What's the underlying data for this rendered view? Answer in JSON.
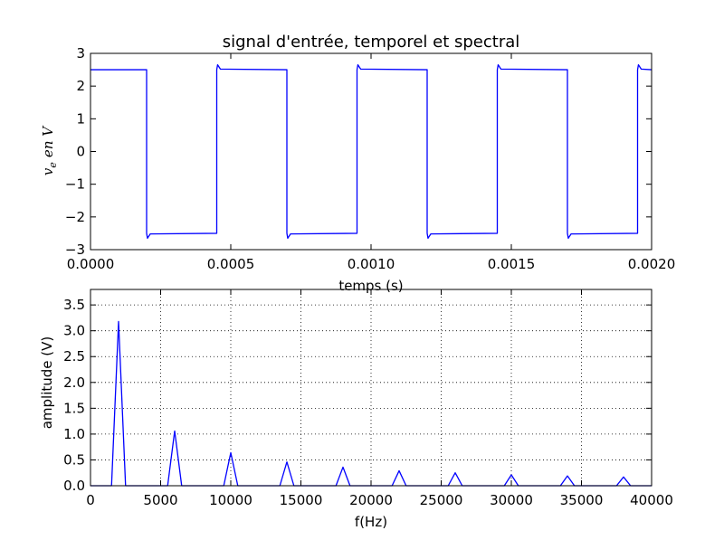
{
  "chart_data": [
    {
      "type": "line",
      "title": "signal d'entrée, temporel et spectral",
      "xlabel": "temps (s)",
      "ylabel": "v_e en V",
      "ylabel_parts": {
        "base": "v",
        "sub": "e",
        "rest": "en V"
      },
      "xlim": [
        0,
        0.002
      ],
      "ylim": [
        -3,
        3
      ],
      "grid": false,
      "x_ticks": [
        0.0,
        0.0005,
        0.001,
        0.0015,
        0.002
      ],
      "x_tick_labels": [
        "0.0000",
        "0.0005",
        "0.0010",
        "0.0015",
        "0.0020"
      ],
      "y_ticks": [
        -3,
        -2,
        -1,
        0,
        1,
        2,
        3
      ],
      "y_tick_labels": [
        "−3",
        "−2",
        "−1",
        "0",
        "1",
        "2",
        "3"
      ],
      "color": "#0000ff",
      "series": [
        {
          "x": [
            0.0,
            0.0002,
            0.0002,
            0.000203,
            0.000213,
            0.00045,
            0.00045,
            0.000453,
            0.000463,
            0.0007,
            0.0007,
            0.000703,
            0.000713,
            0.00095,
            0.00095,
            0.000953,
            0.000963,
            0.0012,
            0.0012,
            0.001203,
            0.001213,
            0.00145,
            0.00145,
            0.001453,
            0.001463,
            0.0017,
            0.0017,
            0.001703,
            0.001713,
            0.00195,
            0.00195,
            0.001953,
            0.001963,
            0.002
          ],
          "values": [
            2.5,
            2.5,
            -2.5,
            -2.65,
            -2.52,
            -2.5,
            2.5,
            2.65,
            2.52,
            2.5,
            -2.5,
            -2.65,
            -2.52,
            -2.5,
            2.5,
            2.65,
            2.52,
            2.5,
            -2.5,
            -2.65,
            -2.52,
            -2.5,
            2.5,
            2.65,
            2.52,
            2.5,
            -2.5,
            -2.65,
            -2.52,
            -2.5,
            2.5,
            2.65,
            2.52,
            2.5
          ]
        }
      ]
    },
    {
      "type": "line",
      "title": "",
      "xlabel": "f(Hz)",
      "ylabel": "amplitude (V)",
      "xlim": [
        0,
        40000
      ],
      "ylim": [
        0,
        3.8
      ],
      "grid": true,
      "x_ticks": [
        0,
        5000,
        10000,
        15000,
        20000,
        25000,
        30000,
        35000,
        40000
      ],
      "x_tick_labels": [
        "0",
        "5000",
        "10000",
        "15000",
        "20000",
        "25000",
        "30000",
        "35000",
        "40000"
      ],
      "y_ticks": [
        0,
        0.5,
        1.0,
        1.5,
        2.0,
        2.5,
        3.0,
        3.5
      ],
      "y_tick_labels": [
        "0.0",
        "0.5",
        "1.0",
        "1.5",
        "2.0",
        "2.5",
        "3.0",
        "3.5"
      ],
      "color": "#0000ff",
      "series": [
        {
          "x": [
            0,
            1500,
            2000,
            2500,
            5500,
            6000,
            6500,
            9500,
            10000,
            10500,
            13500,
            14000,
            14500,
            17500,
            18000,
            18500,
            21500,
            22000,
            22500,
            25500,
            26000,
            26500,
            29500,
            30000,
            30500,
            33500,
            34000,
            34500,
            37500,
            38000,
            38500,
            40000
          ],
          "values": [
            0,
            0,
            3.18,
            0,
            0,
            1.06,
            0,
            0,
            0.64,
            0,
            0,
            0.46,
            0,
            0,
            0.36,
            0,
            0,
            0.29,
            0,
            0,
            0.25,
            0,
            0,
            0.21,
            0,
            0,
            0.19,
            0,
            0,
            0.17,
            0,
            0
          ]
        }
      ]
    }
  ]
}
